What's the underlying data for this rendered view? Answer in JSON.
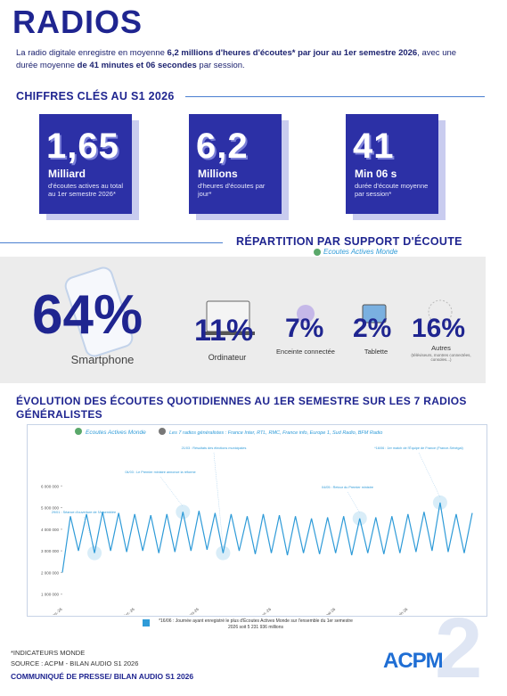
{
  "header": {
    "title": "RADIOS",
    "intro": [
      "La radio digitale enregistre en moyenne ",
      "6,2 millions d'heures d'écoutes* par jour au 1er semestre 2026",
      ", avec une durée moyenne ",
      "de 41 minutes et 06 secondes",
      " par session."
    ]
  },
  "key_figures": {
    "title": "CHIFFRES CLÉS AU S1 2026",
    "cards": [
      {
        "number": "1,65",
        "unit": "Milliard",
        "description": "d'écoutes actives au total au 1er semestre 2026*"
      },
      {
        "number": "6,2",
        "unit": "Millions",
        "description": "d'heures d'écoutes par jour*"
      },
      {
        "number": "41",
        "unit": "Min 06 s",
        "description": "durée d'écoute moyenne par session*"
      }
    ]
  },
  "devices": {
    "title": "RÉPARTITION PAR SUPPORT D'ÉCOUTE",
    "subtitle": "Ecoutes Actives Monde",
    "items": [
      {
        "percent": "64%",
        "label": "Smartphone"
      },
      {
        "percent": "11%",
        "label": "Ordinateur"
      },
      {
        "percent": "7%",
        "label": "Enceinte connectée"
      },
      {
        "percent": "2%",
        "label": "Tablette"
      },
      {
        "percent": "16%",
        "label": "Autres",
        "note": "(téléviseurs, montres connectées, consoles...)"
      }
    ]
  },
  "chart_data": {
    "type": "line",
    "title": "ÉVOLUTION DES ÉCOUTES QUOTIDIENNES AU 1ER SEMESTRE SUR LES 7 RADIOS GÉNÉRALISTES",
    "legend": [
      "Ecoutes Actives Monde",
      "Les 7 radios généralistes : France Inter, RTL, RMC, France info, Europe 1, Sud Radio, BFM Radio"
    ],
    "categories": [
      "janv.-26",
      null,
      null,
      null,
      null,
      null,
      null,
      null,
      null,
      "févr.-26",
      null,
      null,
      null,
      null,
      null,
      null,
      null,
      "mars-26",
      null,
      null,
      null,
      null,
      null,
      null,
      null,
      null,
      "avr.-26",
      null,
      null,
      null,
      null,
      null,
      null,
      null,
      "mai-26",
      null,
      null,
      null,
      null,
      null,
      null,
      null,
      null,
      "juin-26",
      null,
      null,
      null,
      null,
      null,
      null,
      null,
      null
    ],
    "series": [
      {
        "name": "Ecoutes Actives Monde",
        "color": "#2f9bd8",
        "values": [
          2000000,
          4600000,
          3000000,
          4700000,
          2900000,
          4800000,
          3000000,
          4750000,
          2950000,
          4700000,
          3000000,
          4650000,
          2900000,
          4700000,
          2950000,
          4800000,
          3000000,
          4850000,
          3050000,
          4750000,
          2900000,
          4700000,
          3000000,
          4600000,
          2850000,
          4700000,
          2900000,
          4650000,
          2800000,
          4600000,
          2900000,
          4500000,
          2850000,
          4550000,
          2900000,
          4600000,
          2800000,
          4500000,
          2900000,
          4550000,
          2850000,
          4600000,
          2900000,
          4700000,
          2950000,
          4800000,
          3000000,
          5231936,
          2950000,
          4700000,
          2900000,
          4750000
        ]
      }
    ],
    "ylim": [
      700000,
      6300000
    ],
    "yticks": [
      {
        "value": 1000000,
        "label": "1 000 000"
      },
      {
        "value": 2000000,
        "label": "2 000 000"
      },
      {
        "value": 3000000,
        "label": "3 000 000"
      },
      {
        "value": 4000000,
        "label": "4 000 000"
      },
      {
        "value": 5000000,
        "label": "5 000 000"
      },
      {
        "value": 6000000,
        "label": "6 000 000"
      }
    ],
    "grid": false,
    "annotations": [
      "29/01 : Séance d'ouverture de l'Assemblée",
      "04/03 : Le Premier ministre annonce la réforme",
      "21/03 : Résultats des élections municipales",
      "04/05 : Retour du Premier ministre",
      "*16/06 : 1er match de l'Équipe de France (France-Sénégal)"
    ],
    "footnote": "*16/06 : Journée ayant enregistré le plus d'Écoutes Actives Monde sur l'ensemble du 1er semestre 2026 soit 5 231 936 millions"
  },
  "footer": {
    "note": "*INDICATEURS MONDE",
    "source": "SOURCE : ACPM - BILAN AUDIO S1 2026",
    "press": "COMMUNIQUÉ DE PRESSE/ BILAN AUDIO S1 2026",
    "logo": "ACPM",
    "page": "2"
  }
}
